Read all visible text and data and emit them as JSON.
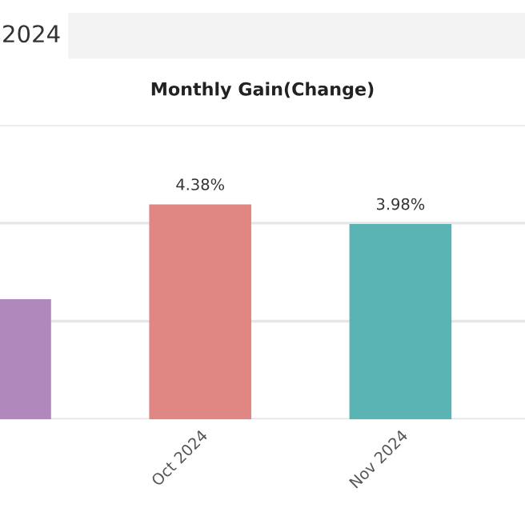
{
  "chart_data": {
    "type": "bar",
    "title": "Monthly Gain(Change)",
    "annotations": [
      "2024"
    ],
    "categories": [
      null,
      "Oct 2024",
      "Nov 2024"
    ],
    "values": [
      2.45,
      4.38,
      3.98
    ],
    "colors": [
      "#b088bb",
      "#e08784",
      "#5ab4b4"
    ],
    "value_labels": [
      null,
      "4.38%",
      "3.98%"
    ],
    "ylim": [
      0,
      6
    ],
    "yticks": [
      {
        "value": 0,
        "label": null
      },
      {
        "value": 2,
        "label": null
      },
      {
        "value": 4,
        "label": null
      },
      {
        "value": 6,
        "label": null
      }
    ],
    "grid": "y",
    "legend": false
  }
}
